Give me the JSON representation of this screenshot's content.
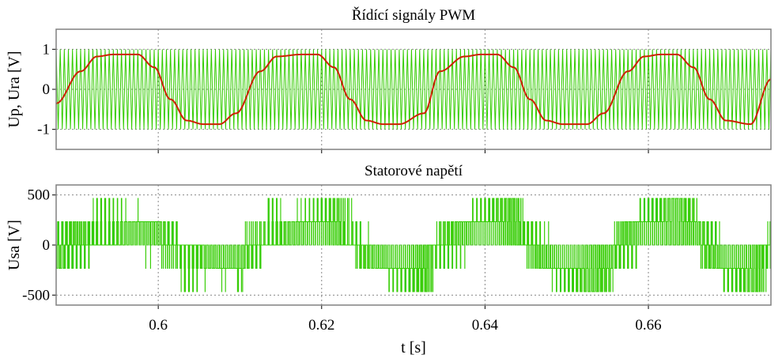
{
  "chart_data": [
    {
      "type": "line",
      "title": "Řídící signály PWM",
      "ylabel": "Up, Ura [V]",
      "xlabel": "",
      "xlim": [
        0.5875,
        0.675
      ],
      "ylim": [
        -1.5,
        1.5
      ],
      "yticks": [
        1,
        0,
        -1
      ],
      "ytick_labels": [
        "1",
        "0",
        "-1"
      ],
      "xticks": [
        0.6,
        0.62,
        0.64,
        0.66
      ],
      "grid": true,
      "series": [
        {
          "kind": "carrier_triangle",
          "color": "#33cc00",
          "amplitude": 1,
          "carrier_frequency_hz": 2000
        },
        {
          "kind": "reference",
          "color": "#cc2200",
          "fundamental_frequency_hz": 50,
          "peak": 0.87,
          "x": [
            0.5875,
            0.5905,
            0.5925,
            0.5945,
            0.5975,
            0.5995,
            0.6015,
            0.6035,
            0.6055,
            0.6075,
            0.6095,
            0.6125,
            0.6145,
            0.6175,
            0.6195,
            0.6215,
            0.6235,
            0.6255,
            0.6275,
            0.6295,
            0.6325,
            0.6345,
            0.6375,
            0.6395,
            0.6415,
            0.6435,
            0.6455,
            0.6475,
            0.6495,
            0.6525,
            0.6545,
            0.6575,
            0.6595,
            0.6615,
            0.6635,
            0.6655,
            0.6675,
            0.6695,
            0.6725,
            0.675
          ],
          "y": [
            -0.35,
            0.45,
            0.82,
            0.87,
            0.87,
            0.55,
            -0.25,
            -0.78,
            -0.87,
            -0.87,
            -0.6,
            0.45,
            0.82,
            0.87,
            0.87,
            0.55,
            -0.25,
            -0.78,
            -0.87,
            -0.87,
            -0.6,
            0.45,
            0.82,
            0.87,
            0.87,
            0.55,
            -0.25,
            -0.78,
            -0.87,
            -0.87,
            -0.6,
            0.45,
            0.82,
            0.87,
            0.87,
            0.55,
            -0.25,
            -0.78,
            -0.87,
            0.25
          ]
        }
      ]
    },
    {
      "type": "line",
      "title": "Statorové napětí",
      "ylabel": "Usa [V]",
      "xlabel": "t [s]",
      "xlim": [
        0.5875,
        0.675
      ],
      "ylim": [
        -600,
        600
      ],
      "yticks": [
        500,
        0,
        -500
      ],
      "ytick_labels": [
        "500",
        "0",
        "-500"
      ],
      "xticks": [
        0.6,
        0.62,
        0.64,
        0.66
      ],
      "xtick_labels": [
        "0.6",
        "0.62",
        "0.64",
        "0.66"
      ],
      "grid": true,
      "series": [
        {
          "kind": "pwm_stator_voltage",
          "color": "#33cc00",
          "levels": [
            -467,
            -233,
            0,
            233,
            467
          ],
          "carrier_frequency_hz": 2000,
          "fundamental_frequency_hz": 50
        }
      ]
    }
  ]
}
